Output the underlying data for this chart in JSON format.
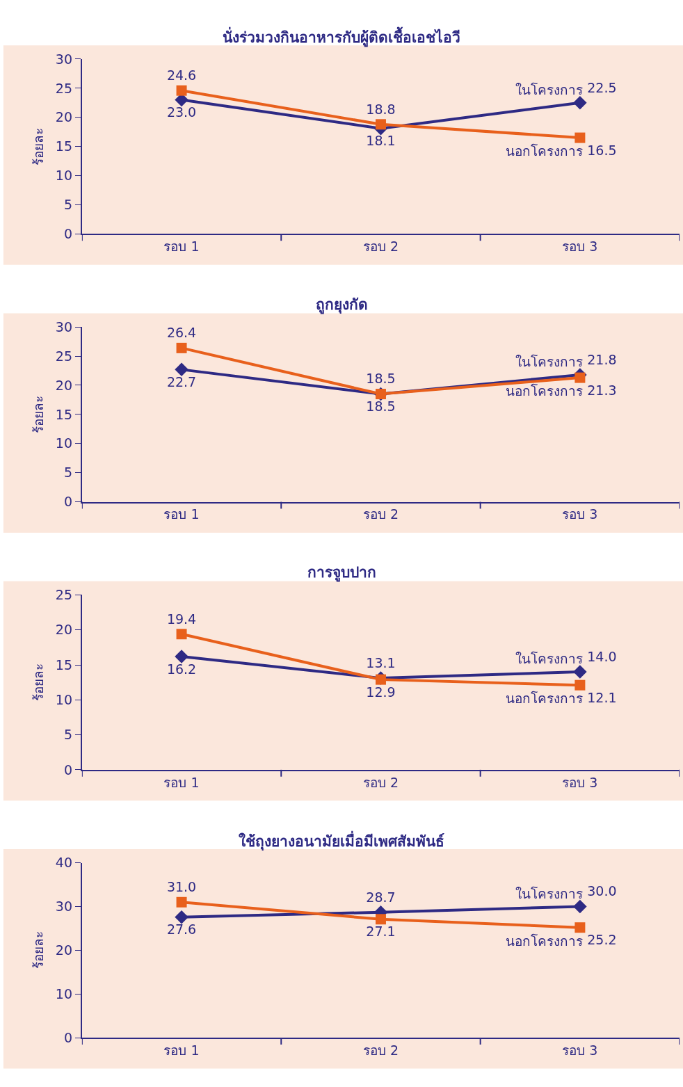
{
  "chart_data": [
    {
      "type": "line",
      "title": "นั่งร่วมวงกินอาหารกับผู้ติดเชื้อเอชไอวี",
      "ylabel": "ร้อยละ",
      "categories": [
        "รอบ 1",
        "รอบ 2",
        "รอบ 3"
      ],
      "ylim": [
        0,
        30
      ],
      "yticks": [
        0,
        5,
        10,
        15,
        20,
        25,
        30
      ],
      "grid": false,
      "series": [
        {
          "name": "ในโครงการ",
          "color": "#2e2a84",
          "marker": "diamond",
          "values": [
            23.0,
            18.1,
            22.5
          ],
          "value_labels": [
            "23.0",
            "18.1",
            "22.5"
          ]
        },
        {
          "name": "นอกโครงการ",
          "color": "#e8601c",
          "marker": "square",
          "values": [
            24.6,
            18.8,
            16.5
          ],
          "value_labels": [
            "24.6",
            "18.8",
            "16.5"
          ]
        }
      ]
    },
    {
      "type": "line",
      "title": "ถูกยุงกัด",
      "ylabel": "ร้อยละ",
      "categories": [
        "รอบ 1",
        "รอบ 2",
        "รอบ 3"
      ],
      "ylim": [
        0,
        30
      ],
      "yticks": [
        0,
        5,
        10,
        15,
        20,
        25,
        30
      ],
      "grid": false,
      "series": [
        {
          "name": "ในโครงการ",
          "color": "#2e2a84",
          "marker": "diamond",
          "values": [
            22.7,
            18.5,
            21.8
          ],
          "value_labels": [
            "22.7",
            "18.5",
            "21.8"
          ]
        },
        {
          "name": "นอกโครงการ",
          "color": "#e8601c",
          "marker": "square",
          "values": [
            26.4,
            18.5,
            21.3
          ],
          "value_labels": [
            "26.4",
            "18.5",
            "21.3"
          ]
        }
      ]
    },
    {
      "type": "line",
      "title": "การจูบปาก",
      "ylabel": "ร้อยละ",
      "categories": [
        "รอบ 1",
        "รอบ 2",
        "รอบ 3"
      ],
      "ylim": [
        0,
        25
      ],
      "yticks": [
        0,
        5,
        10,
        15,
        20,
        25
      ],
      "grid": false,
      "series": [
        {
          "name": "ในโครงการ",
          "color": "#2e2a84",
          "marker": "diamond",
          "values": [
            16.2,
            13.1,
            14.0
          ],
          "value_labels": [
            "16.2",
            "13.1",
            "14.0"
          ]
        },
        {
          "name": "นอกโครงการ",
          "color": "#e8601c",
          "marker": "square",
          "values": [
            19.4,
            12.9,
            12.1
          ],
          "value_labels": [
            "19.4",
            "12.9",
            "12.1"
          ]
        }
      ]
    },
    {
      "type": "line",
      "title": "ใช้ถุงยางอนามัยเมื่อมีเพศสัมพันธ์",
      "ylabel": "ร้อยละ",
      "categories": [
        "รอบ 1",
        "รอบ 2",
        "รอบ 3"
      ],
      "ylim": [
        0,
        40
      ],
      "yticks": [
        0,
        10,
        20,
        30,
        40
      ],
      "grid": false,
      "series": [
        {
          "name": "ในโครงการ",
          "color": "#2e2a84",
          "marker": "diamond",
          "values": [
            27.6,
            28.7,
            30.0
          ],
          "value_labels": [
            "27.6",
            "28.7",
            "30.0"
          ]
        },
        {
          "name": "นอกโครงการ",
          "color": "#e8601c",
          "marker": "square",
          "values": [
            31.0,
            27.1,
            25.2
          ],
          "value_labels": [
            "31.0",
            "27.1",
            "25.2"
          ]
        }
      ]
    }
  ]
}
